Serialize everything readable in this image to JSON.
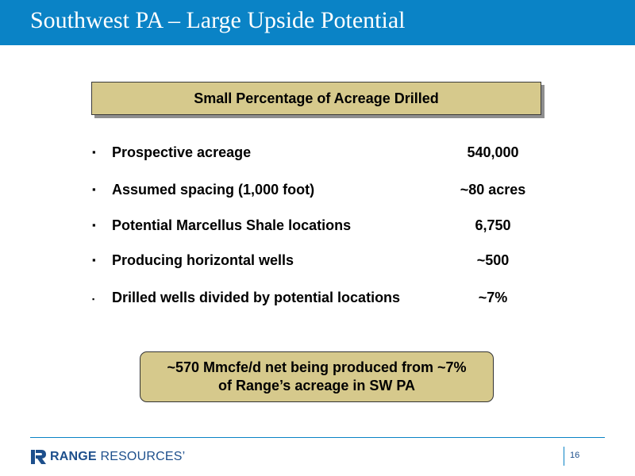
{
  "title": "Southwest PA – Large Upside Potential",
  "header_box": "Small Percentage of Acreage Drilled",
  "rows": [
    {
      "bullet": "▪",
      "label": "Prospective acreage",
      "value": "540,000"
    },
    {
      "bullet": "▪",
      "label": "Assumed spacing (1,000 foot)",
      "value": "~80 acres"
    },
    {
      "bullet": "▪",
      "label": "Potential Marcellus Shale locations",
      "value": "6,750"
    },
    {
      "bullet": "▪",
      "label": "Producing horizontal wells",
      "value": "~500"
    },
    {
      "bullet": "▪",
      "label": "Drilled wells divided by potential locations",
      "value": "~7%"
    }
  ],
  "summary": {
    "line1": "~570 Mmcfe/d net being produced from ~7%",
    "line2": "of Range’s acreage in SW PA"
  },
  "footer": {
    "logo_brand": "RANGE",
    "logo_suffix": "RESOURCES’",
    "page_number": "16"
  },
  "colors": {
    "title_bar": "#0a83c6",
    "box_fill": "#d6c98c",
    "logo": "#1d4f8c"
  }
}
